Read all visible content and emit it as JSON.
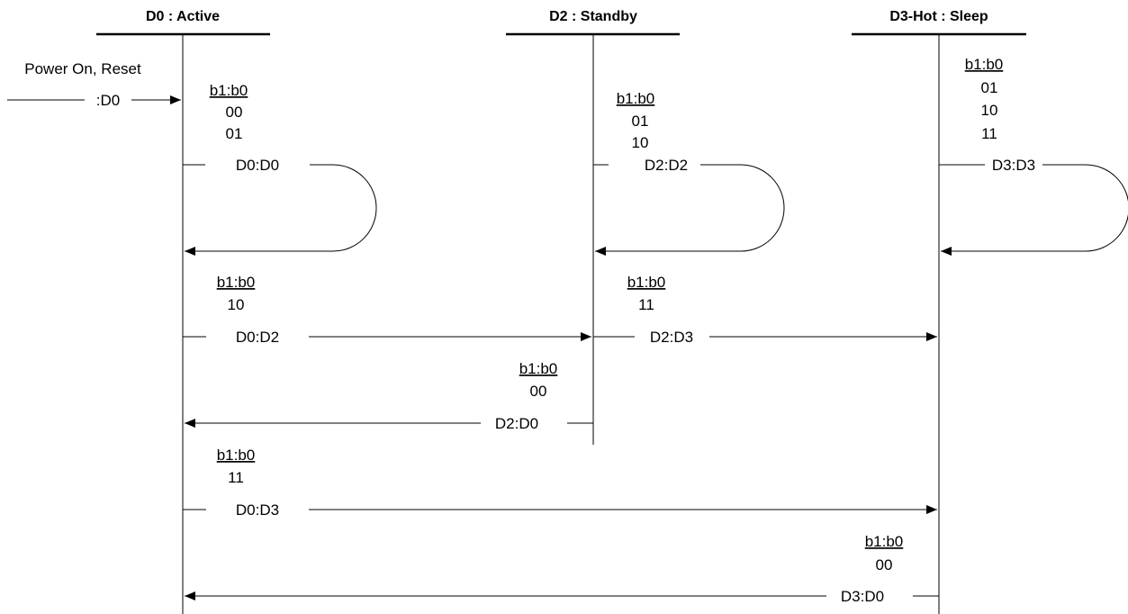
{
  "states": {
    "d0": "D0 : Active",
    "d2": "D2 : Standby",
    "d3": "D3-Hot : Sleep"
  },
  "entry": {
    "label": "Power On, Reset",
    "transition": ":D0"
  },
  "bits_header": "b1:b0",
  "d0_self": {
    "codes": [
      "00",
      "01"
    ],
    "label": "D0:D0"
  },
  "d2_self": {
    "codes": [
      "01",
      "10"
    ],
    "label": "D2:D2"
  },
  "d3_self": {
    "codes": [
      "01",
      "10",
      "11"
    ],
    "label": "D3:D3"
  },
  "d0_d2": {
    "code": "10",
    "label": "D0:D2"
  },
  "d2_d3": {
    "code": "11",
    "label": "D2:D3"
  },
  "d2_d0": {
    "code": "00",
    "label": "D2:D0"
  },
  "d0_d3": {
    "code": "11",
    "label": "D0:D3"
  },
  "d3_d0": {
    "code": "00",
    "label": "D3:D0"
  }
}
